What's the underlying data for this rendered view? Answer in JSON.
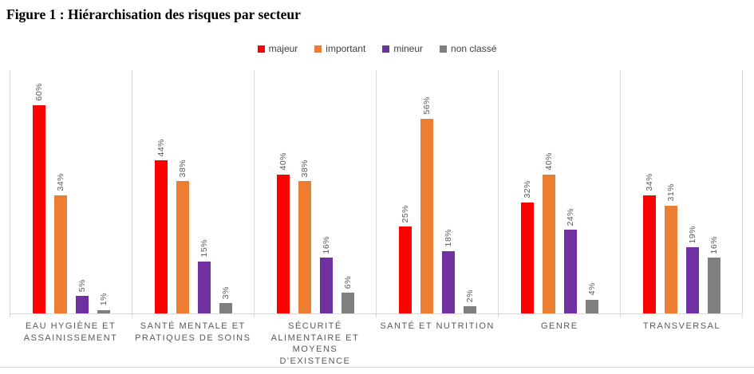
{
  "page": {
    "title": "Figure 1 : Hiérarchisation des risques par secteur"
  },
  "colors": {
    "majeur": "#ff0000",
    "important": "#ed7d31",
    "mineur": "#7030a0",
    "non_classe": "#7f7f7f",
    "gridline": "#d9d9d9",
    "data_label_text": "#595959",
    "category_label_text": "#595959",
    "legend_text": "#404040"
  },
  "chart_data": {
    "type": "bar",
    "title": "Figure 1 : Hiérarchisation des risques par secteur",
    "categories": [
      "EAU HYGIÈNE ET ASSAINISSEMENT",
      "SANTÉ MENTALE ET PRATIQUES DE SOINS",
      "SÉCURITÉ ALIMENTAIRE ET MOYENS D'EXISTENCE",
      "SANTÉ ET NUTRITION",
      "GENRE",
      "TRANSVERSAL"
    ],
    "series": [
      {
        "name": "majeur",
        "color": "#ff0000",
        "values": [
          60,
          44,
          40,
          25,
          32,
          34
        ]
      },
      {
        "name": "important",
        "color": "#ed7d31",
        "values": [
          34,
          38,
          38,
          56,
          40,
          31
        ]
      },
      {
        "name": "mineur",
        "color": "#7030a0",
        "values": [
          5,
          15,
          16,
          18,
          24,
          19
        ]
      },
      {
        "name": "non classé",
        "color": "#7f7f7f",
        "values": [
          1,
          3,
          6,
          2,
          4,
          16
        ]
      }
    ],
    "data_label_suffix": "%",
    "xlabel": "",
    "ylabel": "",
    "ylim": [
      0,
      70
    ],
    "grid": "vertical category separators, no horizontal gridlines",
    "legend_position": "top-center",
    "data_labels_rotated_90": true
  }
}
